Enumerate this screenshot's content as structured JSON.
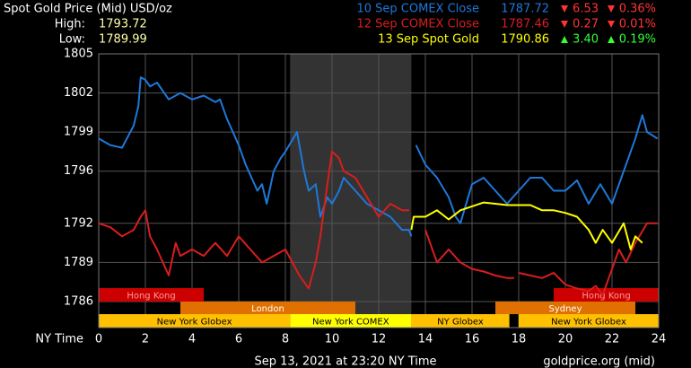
{
  "chart_data": {
    "type": "line",
    "title": "Spot Gold Price (Mid) USD/oz",
    "high_label": "High:",
    "high": "1793.72",
    "low_label": "Low:",
    "low": "1789.99",
    "x_label": "NY Time",
    "footer_left": "Sep 13, 2021 at 23:20 NY Time",
    "footer_right": "goldprice.org (mid)",
    "xlim": [
      0,
      24
    ],
    "xticks": [
      0,
      2,
      4,
      6,
      8,
      10,
      12,
      14,
      16,
      18,
      20,
      22,
      24
    ],
    "ylim": [
      1784,
      1805
    ],
    "yticks": [
      1786,
      1789,
      1792,
      1796,
      1799,
      1802,
      1805
    ],
    "grid": true,
    "shade": [
      8.2,
      13.4
    ],
    "shade_color": "#333333",
    "series": [
      {
        "name": "10 Sep COMEX Close",
        "color": "#1e78d8",
        "price": "1787.72",
        "change": "6.53",
        "change_pct": "0.36%",
        "direction": "down",
        "x": [
          0,
          0.5,
          1,
          1.5,
          1.7,
          1.8,
          2,
          2.2,
          2.5,
          3,
          3.5,
          4,
          4.5,
          5,
          5.2,
          5.5,
          6,
          6.3,
          6.8,
          7,
          7.2,
          7.5,
          7.8,
          8,
          8.5,
          8.8,
          9,
          9.3,
          9.5,
          9.8,
          10,
          10.3,
          10.5,
          11,
          11.5,
          12,
          12.5,
          13,
          13.3,
          13.4,
          null,
          13.6,
          14,
          14.5,
          15,
          15.3,
          15.5,
          16,
          16.5,
          17,
          17.5,
          18,
          18.5,
          19,
          19.5,
          20,
          20.5,
          21,
          21.5,
          22,
          22.5,
          23,
          23.3,
          23.5,
          23.95
        ],
        "values": [
          1798.5,
          1798,
          1797.8,
          1799.5,
          1801,
          1803.2,
          1803,
          1802.5,
          1802.8,
          1801.5,
          1802,
          1801.5,
          1801.8,
          1801.3,
          1801.5,
          1800,
          1798,
          1796.5,
          1794.5,
          1795,
          1793.5,
          1796,
          1797,
          1797.5,
          1799,
          1796,
          1794.5,
          1795,
          1792.5,
          1794,
          1793.5,
          1794.5,
          1795.5,
          1794.5,
          1793.5,
          1793,
          1792.5,
          1791.5,
          1791.5,
          1791,
          null,
          1798,
          1796.5,
          1795.5,
          1794,
          1792.5,
          1792,
          1795,
          1795.5,
          1794.5,
          1793.5,
          1794.5,
          1795.5,
          1795.5,
          1794.5,
          1794.5,
          1795.3,
          1793.5,
          1795,
          1793.5,
          1796,
          1798.5,
          1800.3,
          1799,
          1798.5
        ]
      },
      {
        "name": "12 Sep COMEX Close",
        "color": "#d81e1e",
        "price": "1787.46",
        "change": "0.27",
        "change_pct": "0.01%",
        "direction": "down",
        "x": [
          0,
          0.5,
          1,
          1.5,
          1.8,
          2,
          2.2,
          2.5,
          3,
          3.3,
          3.5,
          4,
          4.5,
          5,
          5.5,
          6,
          6.5,
          7,
          7.5,
          8,
          8.3,
          8.6,
          9,
          9.3,
          9.5,
          9.8,
          10,
          10.3,
          10.5,
          11,
          11.5,
          12,
          12.5,
          13,
          13.3,
          null,
          14,
          14.5,
          15,
          15.5,
          16,
          16.5,
          17,
          17.5,
          17.8,
          null,
          18,
          18.5,
          19,
          19.5,
          20,
          20.5,
          21,
          21.3,
          21.6,
          22,
          22.3,
          22.6,
          23,
          23.5,
          23.95
        ],
        "values": [
          1792,
          1791.7,
          1791,
          1791.5,
          1792.5,
          1793,
          1791,
          1790,
          1788,
          1790.5,
          1789.5,
          1790,
          1789.5,
          1790.5,
          1789.5,
          1791,
          1790,
          1789,
          1789.5,
          1790,
          1789,
          1788,
          1787,
          1789,
          1791,
          1795,
          1797.5,
          1797,
          1796,
          1795.5,
          1794,
          1792.5,
          1793.5,
          1793,
          1793,
          null,
          1791.5,
          1789,
          1790,
          1789,
          1788.5,
          1788.3,
          1788,
          1787.8,
          1787.8,
          null,
          1788.2,
          1788,
          1787.8,
          1788.2,
          1787.3,
          1787,
          1786.8,
          1787.2,
          1786.5,
          1788.5,
          1790,
          1789,
          1790.5,
          1792,
          1792
        ]
      },
      {
        "name": "13 Sep Spot Gold",
        "color": "#ffff00",
        "price": "1790.86",
        "change": "3.40",
        "change_pct": "0.19%",
        "direction": "up",
        "x": [
          13.4,
          13.5,
          14,
          14.5,
          15,
          15.5,
          16,
          16.5,
          17,
          17.5,
          18,
          18.5,
          19,
          19.5,
          20,
          20.5,
          21,
          21.3,
          21.6,
          22,
          22.5,
          22.8,
          23,
          23.3
        ],
        "values": [
          1791.5,
          1792.5,
          1792.5,
          1793,
          1792.3,
          1793,
          1793.3,
          1793.6,
          1793.5,
          1793.4,
          1793.4,
          1793.4,
          1793,
          1793,
          1792.8,
          1792.5,
          1791.5,
          1790.5,
          1791.5,
          1790.5,
          1792,
          1790,
          1791,
          1790.5
        ]
      }
    ],
    "sessions": [
      {
        "label": "Hong Kong",
        "start": 0,
        "end": 4.5,
        "row": 0,
        "color": "#cc0000",
        "text_color": "#ff9999"
      },
      {
        "label": "Hong Kong",
        "start": 19.5,
        "end": 24,
        "row": 0,
        "color": "#cc0000",
        "text_color": "#ff9999"
      },
      {
        "label": "London",
        "start": 3.5,
        "end": 11,
        "row": 1,
        "color": "#e07000",
        "text_color": "#ffffff"
      },
      {
        "label": "Sydney",
        "start": 17,
        "end": 23,
        "row": 1,
        "color": "#e07000",
        "text_color": "#ffffff"
      },
      {
        "label": "New York Globex",
        "start": 0,
        "end": 8.2,
        "row": 2,
        "color": "#ffc000",
        "text_color": "#000000"
      },
      {
        "label": "New York COMEX",
        "start": 8.2,
        "end": 13.4,
        "row": 2,
        "color": "#ffff00",
        "text_color": "#000000"
      },
      {
        "label": "NY Globex",
        "start": 13.4,
        "end": 17.6,
        "row": 2,
        "color": "#ffc000",
        "text_color": "#000000"
      },
      {
        "label": "New York Globex",
        "start": 18,
        "end": 24,
        "row": 2,
        "color": "#ffc000",
        "text_color": "#000000"
      }
    ]
  }
}
